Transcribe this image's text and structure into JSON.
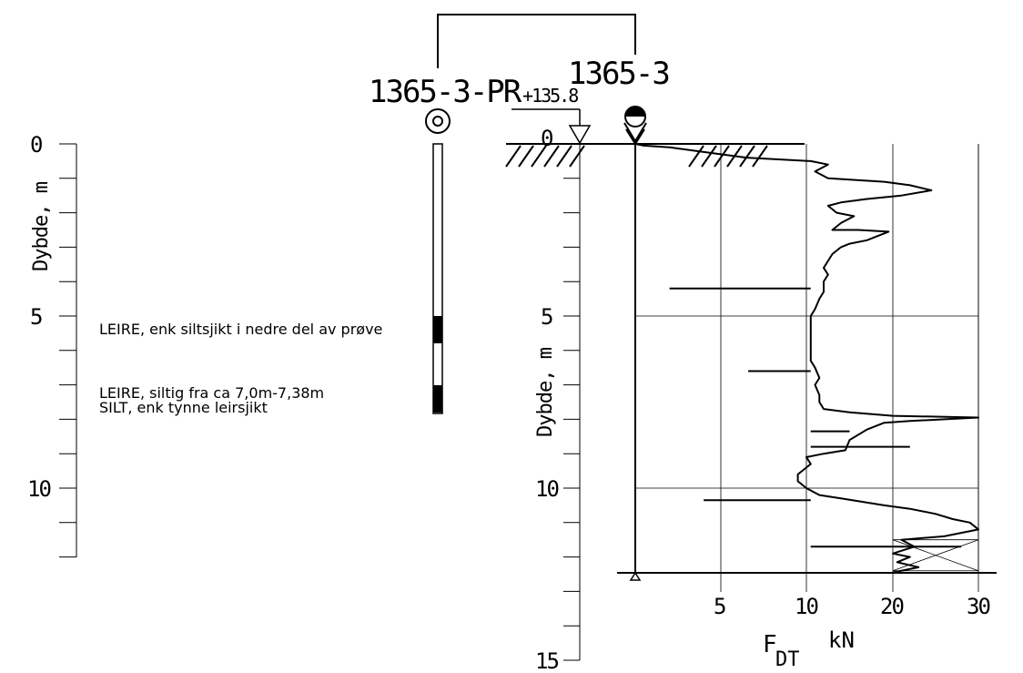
{
  "boreholes": {
    "sample": "1365-3-PR",
    "sounding": "1365-3",
    "ground_level": "+135.8"
  },
  "left_axis": {
    "label": "Dybde, m",
    "ticks": [
      "0",
      "5",
      "10"
    ],
    "depth_range": [
      0,
      12
    ]
  },
  "right_axis": {
    "label": "Dybde, m",
    "ticks": [
      "0",
      "5",
      "10",
      "15"
    ],
    "depth_range": [
      0,
      15
    ]
  },
  "sample_log": [
    {
      "text": "LEIRE, enk siltsjikt i nedre del av prøve",
      "from": 5.0,
      "to": 5.8
    },
    {
      "text": "LEIRE, siltig fra ca 7,0m-7,38m",
      "from": 7.0,
      "to": 7.8
    },
    {
      "text": "SILT, enk tynne leirsjikt",
      "from": 7.0,
      "to": 7.8
    }
  ],
  "force_axis": {
    "label_main": "F",
    "label_sub": "DT",
    "unit": "kN",
    "ticks": [
      "5",
      "10",
      "20",
      "30"
    ]
  },
  "chart_data": {
    "type": "line",
    "title": "",
    "xlabel": "F DT kN",
    "ylabel": "Dybde, m",
    "x_ticks": [
      5,
      10,
      20,
      30
    ],
    "y_ticks": [
      0,
      5,
      10,
      15
    ],
    "ylim": [
      0,
      15
    ],
    "grid": true,
    "stop_depth": 12.5,
    "series": [
      {
        "points": [
          [
            0,
            0
          ],
          [
            0.5,
            0.05
          ],
          [
            2.0,
            0.1
          ],
          [
            3.5,
            0.2
          ],
          [
            6.5,
            0.4
          ],
          [
            10.5,
            0.5
          ],
          [
            12.5,
            0.6
          ],
          [
            11.0,
            0.8
          ],
          [
            12.5,
            1.0
          ],
          [
            19.0,
            1.1
          ],
          [
            22.0,
            1.2
          ],
          [
            24.5,
            1.35
          ],
          [
            21.0,
            1.5
          ],
          [
            17.0,
            1.6
          ],
          [
            14.0,
            1.7
          ],
          [
            12.5,
            1.8
          ],
          [
            13.5,
            2.0
          ],
          [
            15.5,
            2.1
          ],
          [
            14.0,
            2.3
          ],
          [
            13.0,
            2.5
          ],
          [
            16.0,
            2.5
          ],
          [
            19.5,
            2.55
          ],
          [
            17.0,
            2.8
          ],
          [
            15.0,
            2.9
          ],
          [
            14.0,
            3.0
          ],
          [
            13.0,
            3.2
          ],
          [
            12.5,
            3.4
          ],
          [
            12.0,
            3.6
          ],
          [
            12.5,
            3.8
          ],
          [
            12.0,
            4.0
          ],
          [
            12.0,
            4.3
          ],
          [
            11.5,
            4.5
          ],
          [
            11.0,
            4.8
          ],
          [
            10.5,
            5.0
          ],
          [
            10.5,
            5.5
          ],
          [
            10.5,
            6.0
          ],
          [
            10.5,
            6.3
          ],
          [
            11.0,
            6.5
          ],
          [
            11.5,
            6.8
          ],
          [
            11.0,
            7.0
          ],
          [
            11.5,
            7.3
          ],
          [
            11.5,
            7.5
          ],
          [
            12.0,
            7.7
          ],
          [
            15.0,
            7.8
          ],
          [
            20.0,
            7.9
          ],
          [
            30.0,
            7.95
          ],
          [
            22.0,
            8.05
          ],
          [
            19.0,
            8.1
          ],
          [
            17.0,
            8.3
          ],
          [
            15.0,
            8.6
          ],
          [
            14.5,
            8.9
          ],
          [
            12.0,
            9.0
          ],
          [
            10.0,
            9.1
          ],
          [
            10.5,
            9.3
          ],
          [
            9.5,
            9.6
          ],
          [
            9.5,
            9.8
          ],
          [
            10.0,
            10.0
          ],
          [
            11.5,
            10.2
          ],
          [
            14.0,
            10.3
          ],
          [
            19.0,
            10.5
          ],
          [
            22.0,
            10.6
          ],
          [
            25.0,
            10.75
          ],
          [
            27.0,
            10.9
          ],
          [
            29.0,
            11.0
          ],
          [
            30.0,
            11.2
          ],
          [
            26.0,
            11.4
          ],
          [
            21.0,
            11.5
          ],
          [
            22.5,
            11.7
          ],
          [
            20.0,
            11.9
          ],
          [
            22.0,
            12.0
          ],
          [
            20.5,
            12.15
          ],
          [
            23.0,
            12.3
          ],
          [
            20.0,
            12.45
          ]
        ],
        "spikes": [
          {
            "depth": 4.2,
            "to": 2.0
          },
          {
            "depth": 6.6,
            "to": 6.6
          },
          {
            "depth": 8.35,
            "to": 15.0
          },
          {
            "depth": 8.8,
            "to": 22.0
          },
          {
            "depth": 10.35,
            "to": 4.0
          },
          {
            "depth": 11.7,
            "to": 28.0
          }
        ]
      }
    ]
  }
}
